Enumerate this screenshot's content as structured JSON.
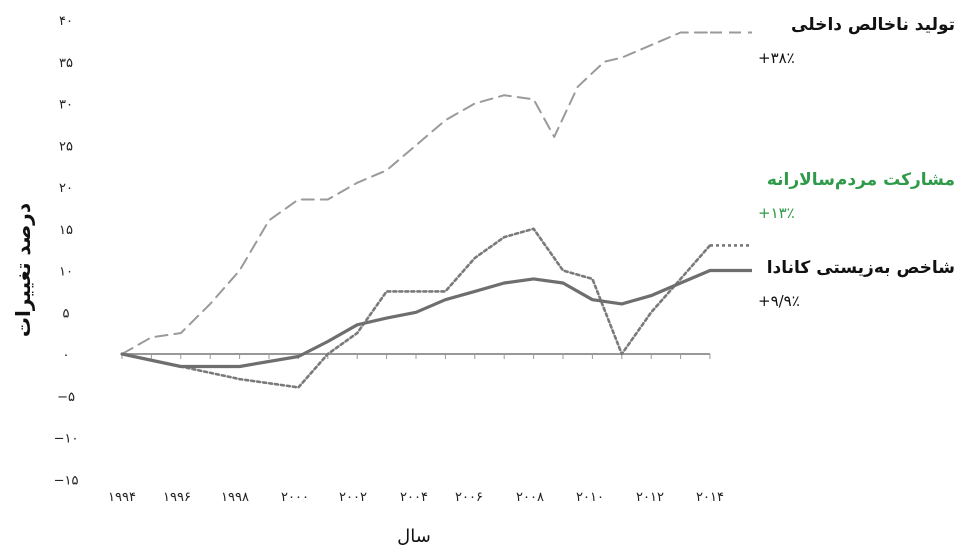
{
  "chart_data": {
    "type": "line",
    "title": "",
    "xlabel": "سال",
    "ylabel": "درصد تغییرات",
    "x_ticks": [
      "۱۹۹۴",
      "۱۹۹۶",
      "۱۹۹۸",
      "۲۰۰۰",
      "۲۰۰۲",
      "۲۰۰۴",
      "۲۰۰۶",
      "۲۰۰۸",
      "۲۰۱۰",
      "۲۰۱۲",
      "۲۰۱۴"
    ],
    "y_ticks": [
      "۴۰",
      "۳۵",
      "۳۰",
      "۲۵",
      "۲۰",
      "۱۵",
      "۱۰",
      "۵",
      "۰",
      "−۵",
      "−۱۰",
      "−۱۵"
    ],
    "ylim": [
      -15,
      40
    ],
    "xlim": [
      1994,
      2014
    ],
    "grid": false,
    "legend": "right, inline labels",
    "series": [
      {
        "name": "تولید ناخالص داخلی",
        "change_label": "+۳۸٪",
        "color": "#9a9a9a",
        "style": "dashed",
        "x": [
          1994,
          1995,
          1996,
          1997,
          1998,
          1999,
          2000,
          2001,
          2002,
          2003,
          2004,
          2005,
          2006,
          2007,
          2008,
          2008.7,
          2009.5,
          2010.4,
          2011,
          2012,
          2013,
          2014
        ],
        "y": [
          0,
          2,
          2.5,
          6,
          10,
          16,
          18.5,
          18.5,
          20.5,
          22,
          25,
          28,
          30,
          31,
          30.5,
          26,
          32,
          35,
          35.5,
          37,
          38.5,
          38.5
        ]
      },
      {
        "name": "مشارکت مردم‌سالارانه",
        "change_label": "+۱۳٪",
        "color": "#7a7a7a",
        "style": "dotted",
        "x": [
          1994,
          1996,
          1998,
          2000,
          2001,
          2002,
          2003,
          2004,
          2005,
          2006,
          2007,
          2008,
          2009,
          2010,
          2011,
          2012,
          2013,
          2014
        ],
        "y": [
          0,
          -1.5,
          -3,
          -4,
          0,
          2.5,
          7.5,
          7.5,
          7.5,
          11.5,
          14,
          15,
          10,
          9,
          0,
          5,
          9,
          13
        ]
      },
      {
        "name": "شاخص به‌زیستی کانادا",
        "change_label": "+۹/۹٪",
        "color": "#6e6e6e",
        "style": "solid",
        "x": [
          1994,
          1996,
          1998,
          2000,
          2001,
          2002,
          2003,
          2004,
          2005,
          2006,
          2007,
          2008,
          2009,
          2010,
          2011,
          2012,
          2013,
          2014
        ],
        "y": [
          0,
          -1.5,
          -1.5,
          -0.3,
          1.5,
          3.5,
          4.3,
          5,
          6.5,
          7.5,
          8.5,
          9,
          8.5,
          6.5,
          6,
          7,
          8.5,
          10
        ]
      }
    ],
    "baseline": {
      "y": 0,
      "color": "#999999"
    },
    "label_colors": [
      "#111111",
      "#2e9a4a",
      "#111111"
    ]
  }
}
